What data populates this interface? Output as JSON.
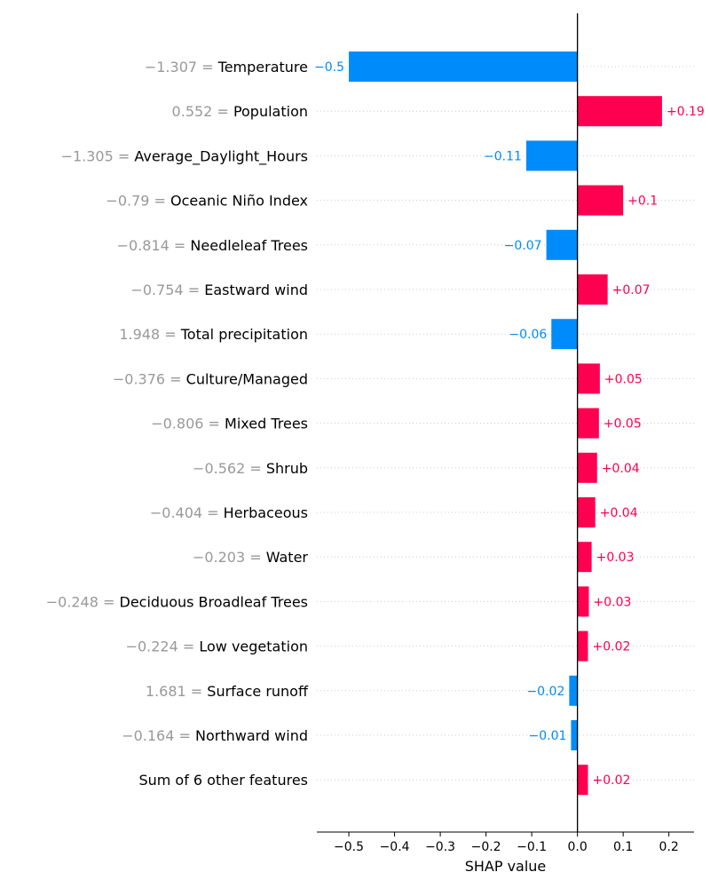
{
  "chart_data": {
    "type": "bar",
    "orientation": "horizontal",
    "xlabel": "SHAP value",
    "xlim": [
      -0.57,
      0.255
    ],
    "xticks": [
      -0.5,
      -0.4,
      -0.3,
      -0.2,
      -0.1,
      0.0,
      0.1,
      0.2
    ],
    "xtick_labels": [
      "−0.5",
      "−0.4",
      "−0.3",
      "−0.2",
      "−0.1",
      "0.0",
      "0.1",
      "0.2"
    ],
    "grid": false,
    "colors": {
      "positive": "#ff0051",
      "negative": "#008bfb",
      "feature_value": "#999999"
    },
    "features": [
      {
        "value_text": "−1.307",
        "name": "Temperature",
        "shap": -0.5,
        "label": "−0.5"
      },
      {
        "value_text": "0.552",
        "name": "Population",
        "shap": 0.185,
        "label": "+0.19"
      },
      {
        "value_text": "−1.305",
        "name": "Average_Daylight_Hours",
        "shap": -0.112,
        "label": "−0.11"
      },
      {
        "value_text": "−0.79",
        "name": "Oceanic Niño Index",
        "shap": 0.1,
        "label": "+0.1"
      },
      {
        "value_text": "−0.814",
        "name": "Needleleaf Trees",
        "shap": -0.068,
        "label": "−0.07"
      },
      {
        "value_text": "−0.754",
        "name": "Eastward wind",
        "shap": 0.066,
        "label": "+0.07"
      },
      {
        "value_text": "1.948",
        "name": "Total precipitation",
        "shap": -0.057,
        "label": "−0.06"
      },
      {
        "value_text": "−0.376",
        "name": "Culture/Managed",
        "shap": 0.049,
        "label": "+0.05"
      },
      {
        "value_text": "−0.806",
        "name": "Mixed Trees",
        "shap": 0.047,
        "label": "+0.05"
      },
      {
        "value_text": "−0.562",
        "name": "Shrub",
        "shap": 0.043,
        "label": "+0.04"
      },
      {
        "value_text": "−0.404",
        "name": "Herbaceous",
        "shap": 0.039,
        "label": "+0.04"
      },
      {
        "value_text": "−0.203",
        "name": "Water",
        "shap": 0.031,
        "label": "+0.03"
      },
      {
        "value_text": "−0.248",
        "name": "Deciduous Broadleaf Trees",
        "shap": 0.025,
        "label": "+0.03"
      },
      {
        "value_text": "−0.224",
        "name": "Low vegetation",
        "shap": 0.023,
        "label": "+0.02"
      },
      {
        "value_text": "1.681",
        "name": "Surface runoff",
        "shap": -0.018,
        "label": "−0.02"
      },
      {
        "value_text": "−0.164",
        "name": "Northward wind",
        "shap": -0.014,
        "label": "−0.01"
      },
      {
        "value_text": "",
        "name": "Sum of 6 other features",
        "shap": 0.023,
        "label": "+0.02"
      }
    ]
  }
}
